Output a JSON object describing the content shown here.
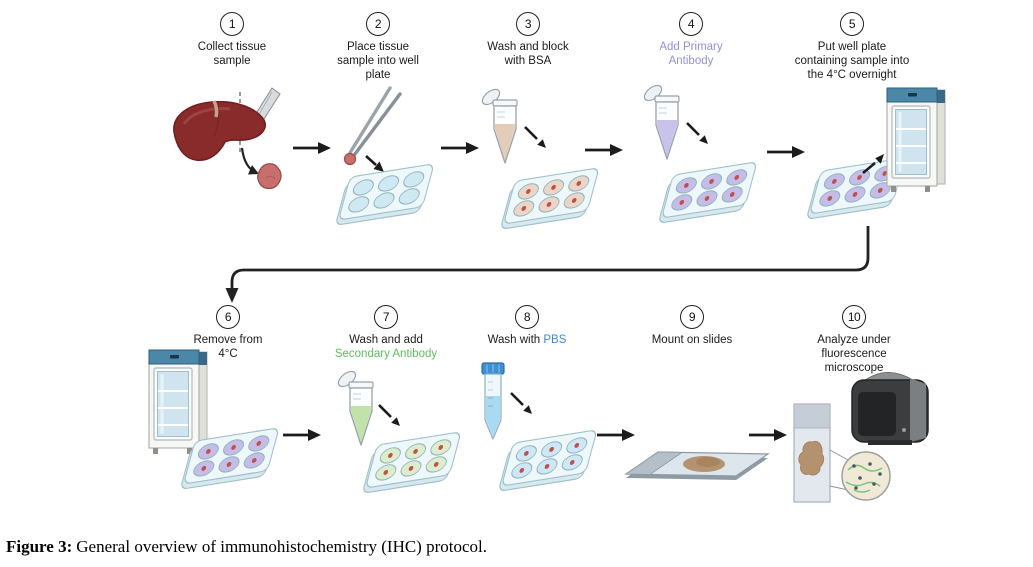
{
  "caption": {
    "label": "Figure 3:",
    "text": "General overview of immunohistochemistry (IHC) protocol."
  },
  "colors": {
    "step_text": "#1b1b1b",
    "primary_antibody_text": "#9191d6",
    "secondary_antibody_text": "#5cbf5c",
    "pbs_text": "#3f88cf",
    "arrow": "#1c1c1c",
    "liver": "#8a2b2b",
    "tissue": "#c66f6c",
    "plate_body": "#eef7f9",
    "well_blank": "#cfe9f3",
    "well_bsa": "#e9d6c6",
    "well_primary": "#c4bde7",
    "well_secondary": "#dcedcb",
    "well_pbs": "#cde8f4",
    "bsa_liquid": "#e3cdb9",
    "primary_liquid": "#c9c3ec",
    "secondary_liquid": "#c2e2aa",
    "pbs_liquid": "#a9daf2",
    "sample_dot": "#c0504d",
    "fridge_top": "#4b87a6",
    "fridge_glass": "#cfe4ef",
    "falcon_cap": "#3f8fd2"
  },
  "steps": [
    {
      "number": "1",
      "line1": "Collect tissue",
      "line2": "sample",
      "icon": "liver-scalpel"
    },
    {
      "number": "2",
      "line1": "Place tissue",
      "line2": "sample into well",
      "line3": "plate",
      "icon": "forceps-well-plate"
    },
    {
      "number": "3",
      "line1": "Wash and block",
      "line2": "with BSA",
      "icon": "microtube-bsa-well-plate"
    },
    {
      "number": "4",
      "line1": "Add Primary",
      "line2": "Antibody",
      "icon": "microtube-primary-antibody-well-plate"
    },
    {
      "number": "5",
      "line1": "Put well plate",
      "line2": "containing sample into",
      "line3": "the 4°C overnight",
      "icon": "well-plate-into-fridge"
    },
    {
      "number": "6",
      "line1": "Remove from",
      "line2": "4°C",
      "icon": "fridge-well-plate"
    },
    {
      "number": "7",
      "line1": "Wash and add",
      "line2": "Secondary Antibody",
      "icon": "microtube-secondary-antibody-well-plate"
    },
    {
      "number": "8",
      "line1": "Wash with ",
      "highlight": "PBS",
      "icon": "falcon-tube-pbs-well-plate"
    },
    {
      "number": "9",
      "line1": "Mount on slides",
      "icon": "microscope-slide"
    },
    {
      "number": "10",
      "line1": "Analyze under",
      "line2": "fluorescence",
      "line3": "microscope",
      "icon": "fluorescence-microscope-slide"
    }
  ]
}
